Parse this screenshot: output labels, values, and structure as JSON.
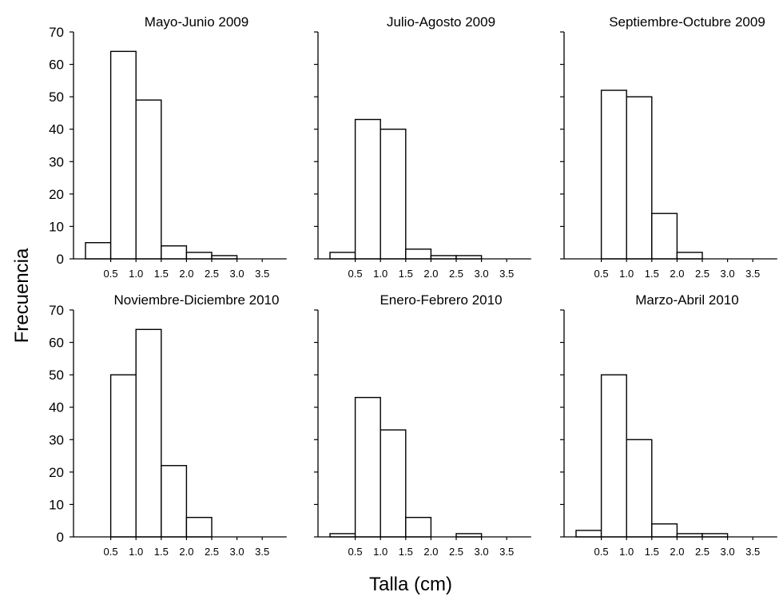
{
  "chart_data": {
    "type": "bar",
    "ylabel": "Frecuencia",
    "xlabel": "Talla (cm)",
    "ylim": [
      0,
      70
    ],
    "yticks": [
      "0",
      "10",
      "20",
      "30",
      "40",
      "50",
      "60",
      "70"
    ],
    "xticks": [
      "0.5",
      "1.0",
      "1.5",
      "2.0",
      "2.5",
      "3.0",
      "3.5"
    ],
    "bin_edges": [
      0.0,
      0.5,
      1.0,
      1.5,
      2.0,
      2.5,
      3.0,
      3.5,
      4.0
    ],
    "panels": [
      {
        "title": "Mayo-Junio 2009",
        "values": [
          5,
          64,
          49,
          4,
          2,
          1,
          0,
          0
        ]
      },
      {
        "title": "Julio-Agosto 2009",
        "values": [
          2,
          43,
          40,
          3,
          1,
          1,
          0,
          0
        ]
      },
      {
        "title": "Septiembre-Octubre 2009",
        "values": [
          0,
          52,
          50,
          14,
          2,
          0,
          0,
          0
        ]
      },
      {
        "title": "Noviembre-Diciembre 2010",
        "values": [
          0,
          50,
          64,
          22,
          6,
          0,
          0,
          0
        ]
      },
      {
        "title": "Enero-Febrero 2010",
        "values": [
          1,
          43,
          33,
          6,
          0,
          1,
          0,
          0
        ]
      },
      {
        "title": "Marzo-Abril 2010",
        "values": [
          2,
          50,
          30,
          4,
          1,
          1,
          0,
          0
        ]
      }
    ]
  }
}
